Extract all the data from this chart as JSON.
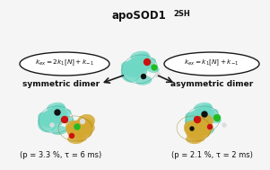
{
  "title": "apoSOD1",
  "title_super": "2SH",
  "bg_color": "#f5f5f5",
  "text_color": "#111111",
  "cyan_color": "#6ED8C5",
  "gold_color": "#C8951A",
  "gold_color2": "#D4A830",
  "ellipse_edge": "#1a1a1a",
  "arrow_color": "#1a1a1a",
  "dot_red": "#CC1111",
  "dot_green": "#22BB22",
  "dot_black": "#111111",
  "dot_white": "#dddddd",
  "left_eq": "$k_{ex} = 2k_1[N] + k_{-1}$",
  "right_eq": "$k_{ex} = k_1[N] + k_{-1}$",
  "left_label": "symmetric dimer",
  "right_label": "asymmetric dimer",
  "left_param": "(p = 3.3 %, τ = 6 ms)",
  "right_param": "(p = 2.1 %, τ = 2 ms)"
}
